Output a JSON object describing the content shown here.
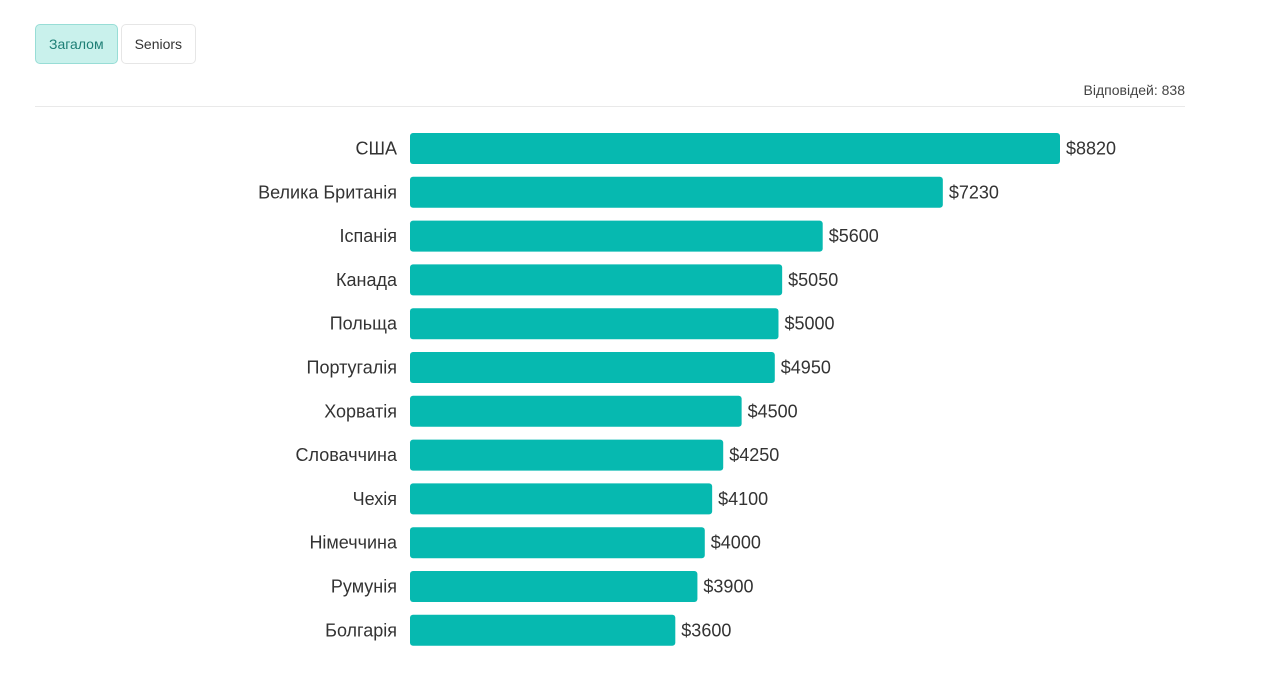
{
  "tabs": [
    {
      "label": "Загалом",
      "active": true
    },
    {
      "label": "Seniors",
      "active": false
    }
  ],
  "responses_text": "Відповідей: 838",
  "colors": {
    "bar": "#06b9b0",
    "tab_active_bg": "#c9f1ec"
  },
  "chart_data": {
    "type": "bar",
    "orientation": "horizontal",
    "categories": [
      "США",
      "Велика Британія",
      "Іспанія",
      "Канада",
      "Польща",
      "Португалія",
      "Хорватія",
      "Словаччина",
      "Чехія",
      "Німеччина",
      "Румунія",
      "Болгарія"
    ],
    "values": [
      8820,
      7230,
      5600,
      5050,
      5000,
      4950,
      4500,
      4250,
      4100,
      4000,
      3900,
      3600
    ],
    "value_labels": [
      "$8820",
      "$7230",
      "$5600",
      "$5050",
      "$5000",
      "$4950",
      "$4500",
      "$4250",
      "$4100",
      "$4000",
      "$3900",
      "$3600"
    ],
    "xlim": [
      0,
      8820
    ],
    "grid": false,
    "legend": "none"
  }
}
